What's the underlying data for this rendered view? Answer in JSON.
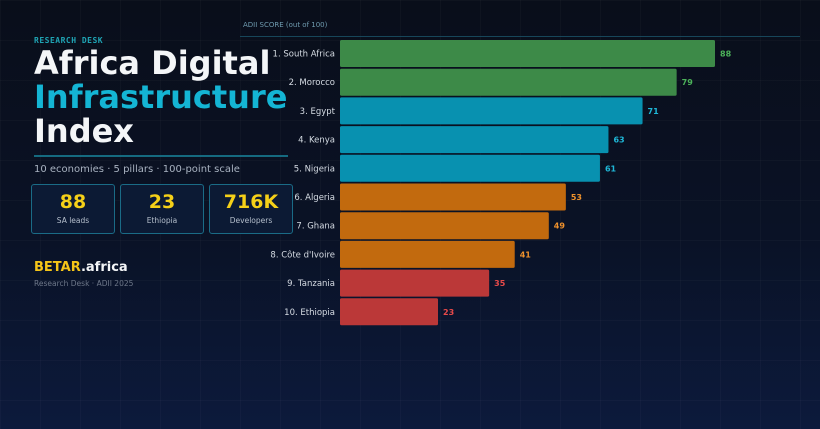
{
  "header": {
    "eyebrow": "RESEARCH DESK",
    "title_line1": "Africa Digital",
    "title_line2": "Infrastructure",
    "title_line3": "Index",
    "subtitle": "10 economies · 5 pillars · 100-point scale"
  },
  "stats": [
    {
      "value": "88",
      "label": "SA leads"
    },
    {
      "value": "23",
      "label": "Ethiopia"
    },
    {
      "value": "716K",
      "label": "Developers"
    }
  ],
  "brand": {
    "name": "BETAR",
    "suffix": ".africa",
    "footer": "Research Desk · ADII 2025"
  },
  "colors": {
    "accent": "#14b5d4",
    "highlight": "#f5d018",
    "green": "#3d8a48",
    "teal": "#0891b0",
    "orange": "#c26a0e",
    "red": "#bb3838"
  },
  "chart_data": {
    "type": "bar",
    "orientation": "horizontal",
    "title": "ADII SCORE (out of 100)",
    "categories": [
      "1. South Africa",
      "2. Morocco",
      "3. Egypt",
      "4. Kenya",
      "5. Nigeria",
      "6. Algeria",
      "7. Ghana",
      "8. Côte d'Ivoire",
      "9. Tanzania",
      "10. Ethiopia"
    ],
    "values": [
      88,
      79,
      71,
      63,
      61,
      53,
      49,
      41,
      35,
      23
    ],
    "tiers": [
      "green",
      "green",
      "teal",
      "teal",
      "teal",
      "orange",
      "orange",
      "orange",
      "red",
      "red"
    ],
    "xlim": [
      0,
      100
    ],
    "grid": false,
    "legend": "none"
  }
}
